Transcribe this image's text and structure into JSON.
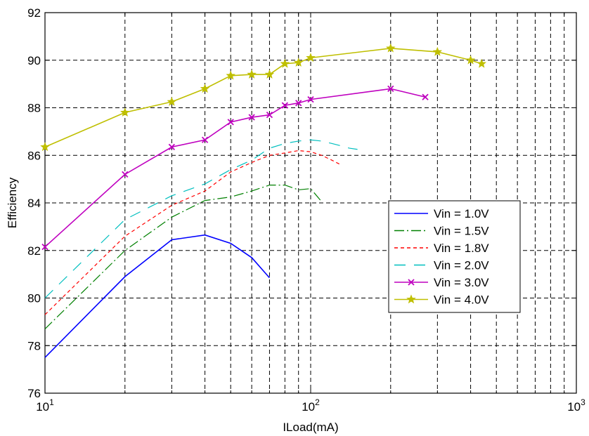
{
  "chart_data": {
    "type": "line",
    "title": "",
    "xlabel": "ILoad(mA)",
    "ylabel": "Efficiency",
    "xscale": "log",
    "xlim": [
      10,
      1000
    ],
    "ylim": [
      76,
      92
    ],
    "yticks": [
      76,
      78,
      80,
      82,
      84,
      86,
      88,
      90,
      92
    ],
    "xtick_labels": [
      {
        "base": "10",
        "exp": "1",
        "value": 10
      },
      {
        "base": "10",
        "exp": "2",
        "value": 100
      },
      {
        "base": "10",
        "exp": "3",
        "value": 1000
      }
    ],
    "grid": true,
    "legend_position": "lower-right",
    "series": [
      {
        "name": "Vin = 1.0V",
        "color": "#0000ff",
        "line_style": "solid",
        "marker": "none",
        "x": [
          10,
          20,
          30,
          40,
          50,
          60,
          70
        ],
        "y": [
          77.5,
          80.9,
          82.45,
          82.65,
          82.3,
          81.7,
          80.85
        ]
      },
      {
        "name": "Vin = 1.5V",
        "color": "#008000",
        "line_style": "dashdot",
        "marker": "none",
        "x": [
          10,
          20,
          30,
          40,
          50,
          60,
          70,
          80,
          90,
          100,
          110
        ],
        "y": [
          78.7,
          82.0,
          83.4,
          84.1,
          84.25,
          84.5,
          84.75,
          84.75,
          84.55,
          84.6,
          84.05
        ]
      },
      {
        "name": "Vin = 1.8V",
        "color": "#ff0000",
        "line_style": "dashed",
        "marker": "none",
        "x": [
          10,
          20,
          30,
          40,
          50,
          60,
          70,
          80,
          90,
          100,
          110,
          120,
          130
        ],
        "y": [
          79.3,
          82.6,
          83.9,
          84.5,
          85.3,
          85.7,
          86.0,
          86.1,
          86.2,
          86.15,
          86.0,
          85.8,
          85.6
        ]
      },
      {
        "name": "Vin = 2.0V",
        "color": "#00bfbf",
        "line_style": "longdash",
        "marker": "none",
        "x": [
          10,
          20,
          30,
          40,
          50,
          60,
          70,
          80,
          90,
          100,
          110,
          120,
          130,
          140,
          150
        ],
        "y": [
          80.0,
          83.3,
          84.3,
          84.8,
          85.4,
          85.8,
          86.3,
          86.5,
          86.6,
          86.65,
          86.6,
          86.5,
          86.4,
          86.3,
          86.25
        ]
      },
      {
        "name": "Vin = 3.0V",
        "color": "#bf00bf",
        "line_style": "solid",
        "marker": "x",
        "x": [
          10,
          20,
          30,
          40,
          50,
          60,
          70,
          80,
          90,
          100,
          200,
          270
        ],
        "y": [
          82.15,
          85.2,
          86.35,
          86.65,
          87.4,
          87.6,
          87.7,
          88.1,
          88.2,
          88.35,
          88.8,
          88.45
        ]
      },
      {
        "name": "Vin = 4.0V",
        "color": "#bfbf00",
        "line_style": "solid",
        "marker": "star",
        "x": [
          10,
          20,
          30,
          40,
          50,
          60,
          70,
          80,
          90,
          100,
          200,
          300,
          400,
          440
        ],
        "y": [
          86.35,
          87.8,
          88.25,
          88.8,
          89.35,
          89.4,
          89.4,
          89.85,
          89.9,
          90.1,
          90.5,
          90.35,
          90.0,
          89.85
        ]
      }
    ]
  }
}
